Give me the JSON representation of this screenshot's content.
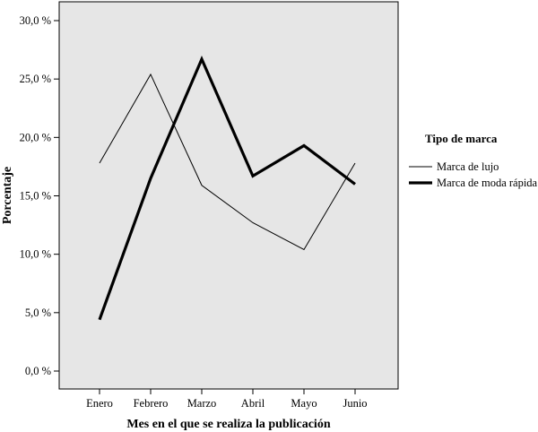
{
  "chart_data": {
    "type": "line",
    "xlabel": "Mes en el que se realiza la publicación",
    "ylabel": "Porcentaje",
    "categories": [
      "Enero",
      "Febrero",
      "Marzo",
      "Abril",
      "Mayo",
      "Junio"
    ],
    "ylim": [
      0,
      30
    ],
    "yticks": [
      0,
      5,
      10,
      15,
      20,
      25,
      30
    ],
    "ytick_labels": [
      "0,0 %",
      "5,0 %",
      "10,0 %",
      "15,0 %",
      "20,0 %",
      "25,0 %",
      "30,0 %"
    ],
    "legend_title": "Tipo de marca",
    "legend_position": "right",
    "background_color": "#e6e6e6",
    "grid": false,
    "series": [
      {
        "name": "Marca de lujo",
        "values": [
          17.8,
          25.4,
          15.9,
          12.7,
          10.4,
          17.8
        ],
        "color": "#000000",
        "style": "thin"
      },
      {
        "name": "Marca de moda rápida",
        "values": [
          4.4,
          16.5,
          26.7,
          16.7,
          19.3,
          16.0
        ],
        "color": "#000000",
        "style": "thick"
      }
    ]
  }
}
